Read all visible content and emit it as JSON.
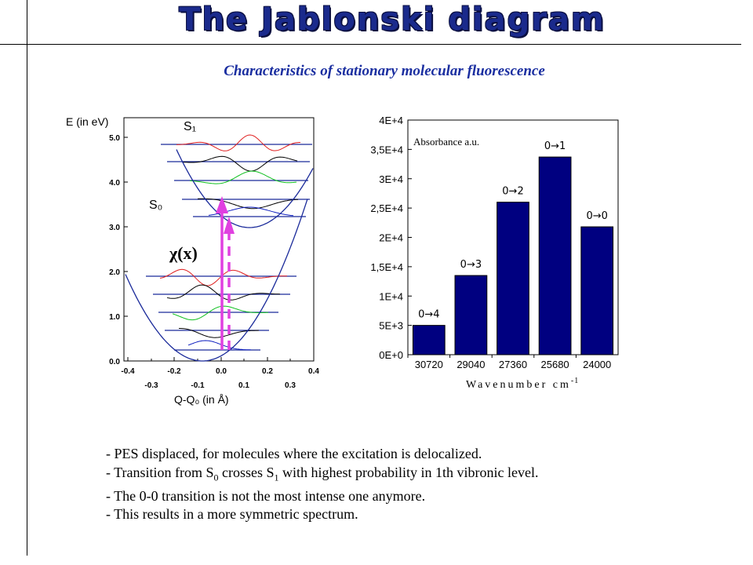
{
  "header": {
    "title": "The Jablonski diagram",
    "subtitle": "Characteristics of stationary molecular fluorescence"
  },
  "pes_plot": {
    "y_axis_label": "E (in eV)",
    "y_ticks": [
      "5.0",
      "4.0",
      "3.0",
      "2.0",
      "1.0",
      "0.0"
    ],
    "x_ticks_top": [
      "-0.4",
      "-0.2",
      "0.0",
      "0.2",
      "0.4"
    ],
    "x_ticks_bottom": [
      "-0.3",
      "-0.1",
      "0.1",
      "0.3"
    ],
    "x_axis_label": "Q-Q₀ (in Å)",
    "label_s1": "S₁",
    "label_s0": "S₀",
    "label_chi": "χ(x)",
    "colors": {
      "curve": "#1a2a9a",
      "arrow": "#e040e0",
      "red": "#e02020",
      "green": "#10c020",
      "blue": "#1020c0",
      "black": "#000000"
    }
  },
  "chart_data": {
    "type": "bar",
    "categories": [
      "30720",
      "29040",
      "27360",
      "25680",
      "24000"
    ],
    "values": [
      5000,
      13500,
      26000,
      33700,
      21800
    ],
    "bar_labels": [
      "0→4",
      "0→3",
      "0→2",
      "0→1",
      "0→0"
    ],
    "ylabel": "Absorbance a.u.",
    "xlabel": "Wavenumber cm",
    "xlabel_sup": "-1",
    "y_tick_labels": [
      "0E+0",
      "5E+3",
      "1E+4",
      "1,5E+4",
      "2E+4",
      "2,5E+4",
      "3E+4",
      "3,5E+4",
      "4E+4"
    ],
    "ylim": [
      0,
      40000
    ],
    "bar_color": "#000080"
  },
  "bullets": {
    "b1": "- PES displaced, for molecules where the excitation is delocalized.",
    "b2_a": "- Transition from S",
    "b2_sub1": "0",
    "b2_b": " crosses S",
    "b2_sub2": "1",
    "b2_c": " with highest probability in 1th vibronic level.",
    "b3": "- The 0-0 transition is not the most intense one anymore.",
    "b4": "- This results in a  more symmetric spectrum."
  }
}
